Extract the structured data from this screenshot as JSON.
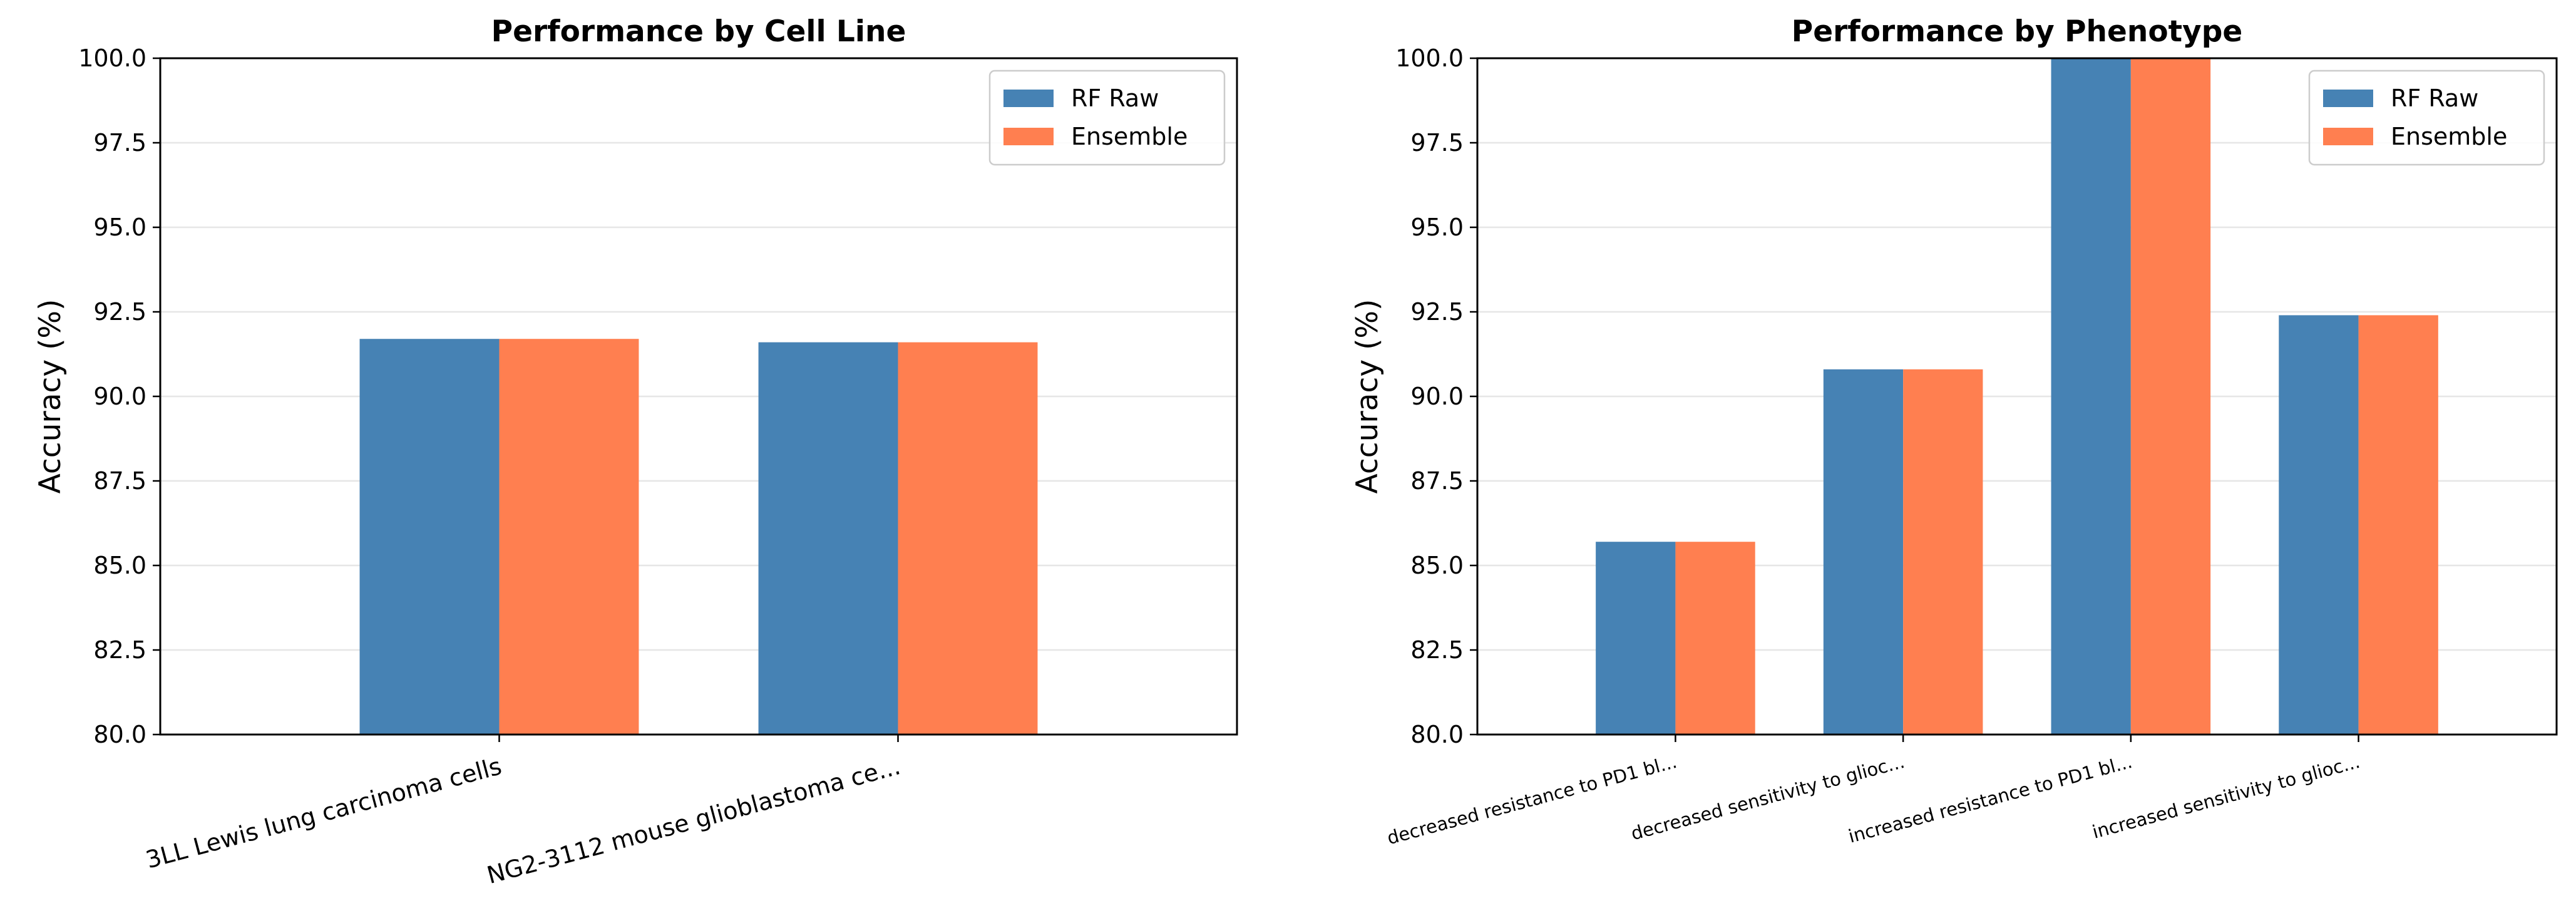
{
  "chart_data": [
    {
      "type": "bar",
      "title": "Performance by Cell Line",
      "xlabel": "",
      "ylabel": "Accuracy (%)",
      "ylim": [
        80,
        100
      ],
      "yticks": [
        "80.0",
        "82.5",
        "85.0",
        "87.5",
        "90.0",
        "92.5",
        "95.0",
        "97.5",
        "100.0"
      ],
      "categories": [
        "3LL Lewis lung carcinoma cells",
        "NG2-3112 mouse glioblastoma ce..."
      ],
      "series": [
        {
          "name": "RF Raw",
          "color": "#4682b4",
          "values": [
            91.7,
            91.6
          ]
        },
        {
          "name": "Ensemble",
          "color": "#ff7f50",
          "values": [
            91.7,
            91.6
          ]
        }
      ],
      "grid": "y",
      "legend": "top-right"
    },
    {
      "type": "bar",
      "title": "Performance by Phenotype",
      "xlabel": "",
      "ylabel": "Accuracy (%)",
      "ylim": [
        80,
        100
      ],
      "yticks": [
        "80.0",
        "82.5",
        "85.0",
        "87.5",
        "90.0",
        "92.5",
        "95.0",
        "97.5",
        "100.0"
      ],
      "categories": [
        "decreased resistance to PD1 bl...",
        "decreased sensitivity to glioc...",
        "increased resistance to PD1 bl...",
        "increased sensitivity to glioc..."
      ],
      "series": [
        {
          "name": "RF Raw",
          "color": "#4682b4",
          "values": [
            85.7,
            90.8,
            100.0,
            92.4
          ]
        },
        {
          "name": "Ensemble",
          "color": "#ff7f50",
          "values": [
            85.7,
            90.8,
            100.0,
            92.4
          ]
        }
      ],
      "grid": "y",
      "legend": "top-right"
    }
  ]
}
